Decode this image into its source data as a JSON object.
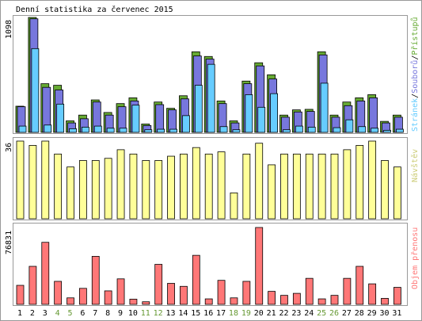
{
  "chart_data": {
    "type": "bar",
    "title": "Denní statistika za červenec 2015",
    "background": "#ffffff",
    "days": [
      "1",
      "2",
      "3",
      "4",
      "5",
      "6",
      "7",
      "8",
      "9",
      "10",
      "11",
      "12",
      "13",
      "14",
      "15",
      "16",
      "17",
      "18",
      "19",
      "20",
      "21",
      "22",
      "23",
      "24",
      "25",
      "26",
      "27",
      "28",
      "29",
      "30",
      "31"
    ],
    "weekend_days": [
      "4",
      "5",
      "11",
      "12",
      "18",
      "19",
      "25",
      "26"
    ],
    "day_label_color": "#000000",
    "weekend_label_color": "#669933",
    "panels": [
      {
        "id": "hits",
        "max_label": "1098",
        "ylim": [
          0,
          1098
        ],
        "legend": {
          "pages": "Stránek",
          "sep1": "/",
          "files": "Souborů",
          "sep2": "/",
          "hits": "Přístupů"
        },
        "series": [
          {
            "name": "Přístupů",
            "color": "#66aa33",
            "values": [
              250,
              1098,
              465,
              450,
              110,
              165,
              310,
              190,
              275,
              330,
              80,
              290,
              230,
              350,
              770,
              725,
              300,
              110,
              490,
              665,
              550,
              165,
              215,
              220,
              770,
              165,
              290,
              330,
              360,
              105,
              165
            ]
          },
          {
            "name": "Souborů",
            "color": "#7777dd",
            "values": [
              245,
              1085,
              430,
              405,
              90,
              130,
              290,
              165,
              245,
              300,
              65,
              265,
              215,
              320,
              730,
              700,
              275,
              90,
              465,
              635,
              510,
              145,
              195,
              200,
              740,
              145,
              255,
              300,
              330,
              90,
              145
            ]
          },
          {
            "name": "Stránek",
            "color": "#66ccff",
            "values": [
              60,
              800,
              70,
              270,
              35,
              50,
              60,
              40,
              40,
              260,
              25,
              30,
              30,
              160,
              450,
              650,
              55,
              25,
              360,
              240,
              370,
              25,
              60,
              50,
              470,
              45,
              120,
              55,
              40,
              20,
              30
            ]
          }
        ]
      },
      {
        "id": "visits",
        "max_label": "36",
        "ylim": [
          0,
          36
        ],
        "legend": {
          "visits": "Návštěv"
        },
        "series": [
          {
            "name": "Návštěv",
            "color": "#ffff99",
            "values": [
              36,
              34,
              36,
              30,
              24,
              27,
              27,
              28,
              32,
              30,
              27,
              27,
              29,
              30,
              33,
              30,
              31,
              12,
              30,
              35,
              25,
              30,
              30,
              30,
              30,
              30,
              32,
              34,
              36,
              27,
              24
            ]
          }
        ]
      },
      {
        "id": "volume",
        "max_label": "76831",
        "ylim": [
          0,
          76831
        ],
        "legend": {
          "volume": "Objem přenosu"
        },
        "series": [
          {
            "name": "Objem přenosu",
            "color": "#ff7777",
            "values": [
              19000,
              38000,
              62000,
              23000,
              6500,
              16000,
              48000,
              13500,
              25500,
              5200,
              2600,
              40000,
              21000,
              18000,
              49000,
              5500,
              24000,
              6500,
              23000,
              76831,
              13000,
              9000,
              11000,
              26000,
              5500,
              9000,
              26000,
              38000,
              20500,
              6000,
              17000
            ]
          }
        ]
      }
    ]
  }
}
